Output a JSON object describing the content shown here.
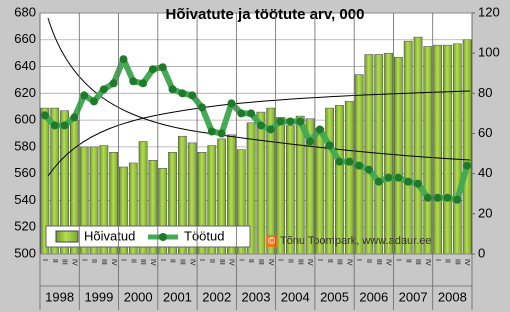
{
  "chart_data": {
    "type": "bar",
    "title": "Hõivatute ja töötute arv, 000",
    "categories": [
      "I",
      "II",
      "III",
      "IV",
      "I",
      "II",
      "III",
      "IV",
      "I",
      "II",
      "III",
      "IV",
      "I",
      "II",
      "III",
      "IV",
      "I",
      "II",
      "III",
      "IV",
      "I",
      "II",
      "III",
      "IV",
      "I",
      "II",
      "III",
      "IV",
      "I",
      "II",
      "III",
      "IV",
      "I",
      "II",
      "III",
      "IV",
      "I",
      "II",
      "III",
      "IV",
      "I",
      "II",
      "III",
      "IV"
    ],
    "years": [
      "1998",
      "1999",
      "2000",
      "2001",
      "2002",
      "2003",
      "2004",
      "2005",
      "2006",
      "2007",
      "2008"
    ],
    "series": [
      {
        "name": "Hõivatud",
        "type": "bar",
        "color": "#99cc33",
        "values": [
          609,
          609,
          607,
          600,
          580,
          580,
          581,
          576,
          565,
          568,
          584,
          570,
          564,
          576,
          588,
          583,
          576,
          581,
          586,
          589,
          578,
          598,
          606,
          609,
          602,
          596,
          603,
          601,
          594,
          609,
          611,
          614,
          634,
          649,
          649,
          650,
          647,
          659,
          662,
          655,
          656,
          656,
          657,
          660
        ]
      },
      {
        "name": "Töötud",
        "type": "line",
        "axis": "y2",
        "color": "#44aa55",
        "values": [
          69,
          64,
          64,
          68,
          79,
          76,
          82,
          85,
          97,
          86,
          85,
          92,
          93,
          82,
          80,
          79,
          73,
          61,
          60,
          75,
          70,
          70,
          64,
          62,
          66,
          66,
          66,
          56,
          62,
          54,
          46,
          46,
          44,
          42,
          36,
          38,
          38,
          36,
          35,
          28,
          28,
          28,
          27,
          44
        ]
      }
    ],
    "ylim": [
      500,
      680
    ],
    "yticks": [
      500,
      520,
      540,
      560,
      580,
      600,
      620,
      640,
      660,
      680
    ],
    "y2lim": [
      0,
      120
    ],
    "y2ticks": [
      0,
      20,
      40,
      60,
      80,
      100,
      120
    ],
    "grid": true,
    "watermark_symbol": "©",
    "watermark": "Tõnu Toompark, www.adaur.ee"
  }
}
